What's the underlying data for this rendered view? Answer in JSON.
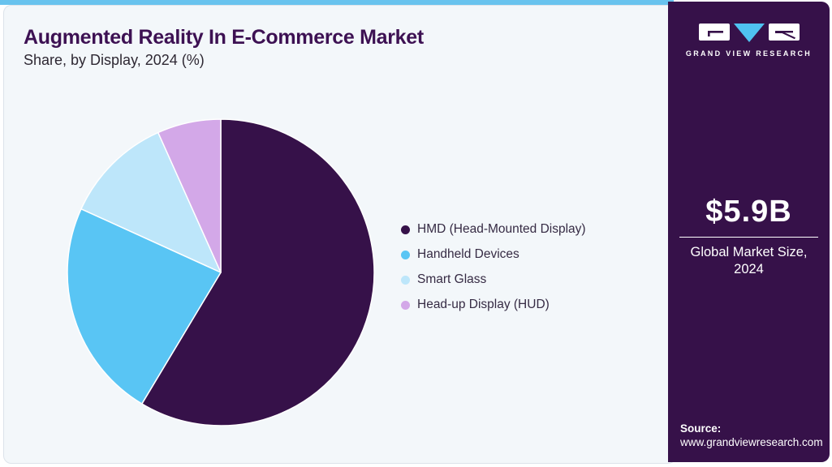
{
  "header": {
    "title": "Augmented Reality In E-Commerce Market",
    "subtitle": "Share, by Display, 2024 (%)"
  },
  "chart_data": {
    "type": "pie",
    "title": "Augmented Reality In E-Commerce Market Share, by Display, 2024 (%)",
    "start_angle_deg": 0,
    "direction": "clockwise",
    "legend_position": "right",
    "segments": [
      {
        "label": "HMD (Head-Mounted Display)",
        "value": 58.6,
        "color": "#361149"
      },
      {
        "label": "Handheld Devices",
        "value": 23.2,
        "color": "#59c5f4"
      },
      {
        "label": "Smart Glass",
        "value": 11.5,
        "color": "#bde6fa"
      },
      {
        "label": "Head-up Display (HUD)",
        "value": 6.7,
        "color": "#d3a8e8"
      }
    ]
  },
  "sidebar": {
    "brand": "GRAND VIEW RESEARCH",
    "market_size": {
      "value": "$5.9B",
      "caption": "Global Market Size, 2024"
    },
    "source": {
      "label": "Source:",
      "url": "www.grandviewresearch.com"
    }
  },
  "theme": {
    "accent_bar": "#68c3ee",
    "card_background": "#f3f7fa",
    "title_color": "#3d1153",
    "sidebar_background": "#361149",
    "logo_triangle": "#4fc2f0"
  }
}
